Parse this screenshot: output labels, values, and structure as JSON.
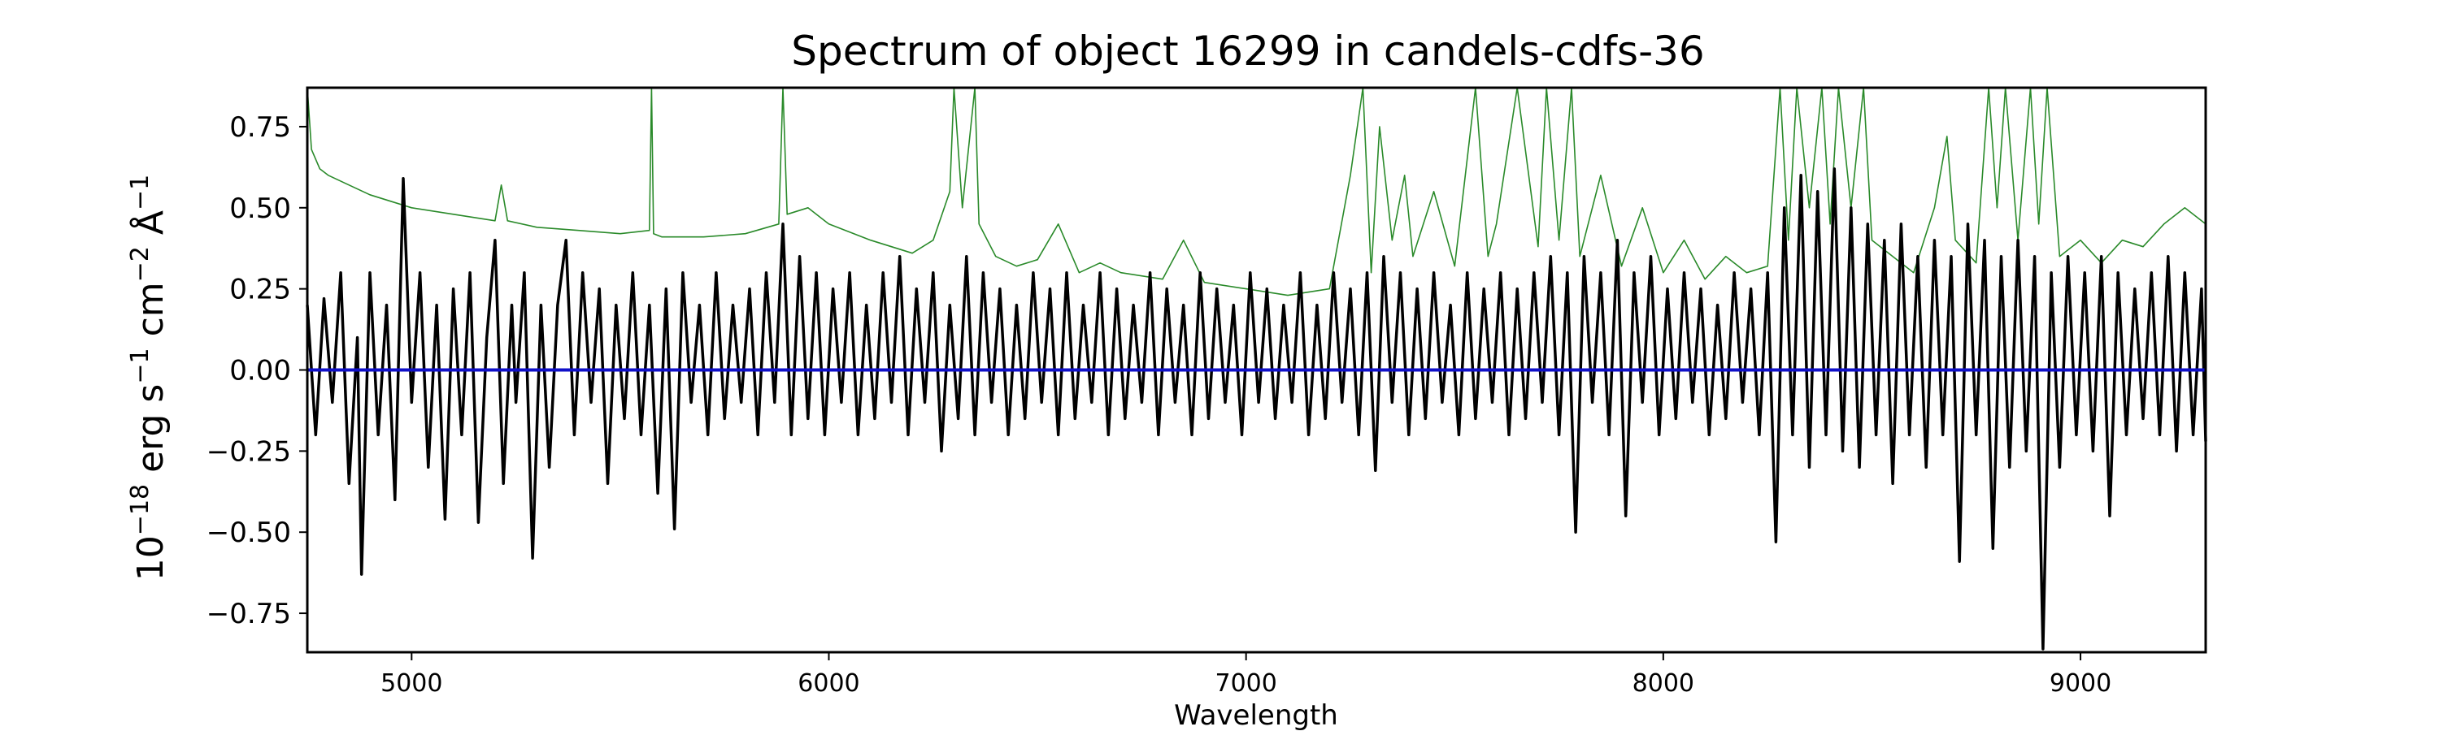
{
  "chart_data": {
    "type": "line",
    "title": "Spectrum of object 16299 in candels-cdfs-36",
    "xlabel": "Wavelength",
    "ylabel_parts": {
      "base": "10",
      "exp1": "−18",
      "erg": " erg s",
      "exp2": "−1",
      "cm": " cm",
      "exp3": "−2",
      "angstrom": " Å",
      "exp4": "−1"
    },
    "xlim": [
      4750,
      9300
    ],
    "ylim": [
      -0.87,
      0.87
    ],
    "xticks": [
      5000,
      6000,
      7000,
      8000,
      9000
    ],
    "xtick_labels": [
      "5000",
      "6000",
      "7000",
      "8000",
      "9000"
    ],
    "yticks": [
      -0.75,
      -0.5,
      -0.25,
      0.0,
      0.25,
      0.5,
      0.75
    ],
    "ytick_labels": [
      "−0.75",
      "−0.50",
      "−0.25",
      "0.00",
      "0.25",
      "0.50",
      "0.75"
    ],
    "grid": false,
    "series": [
      {
        "color": "#2a8a2a",
        "style": "thin",
        "x": [
          4750,
          4760,
          4780,
          4800,
          4850,
          4900,
          4950,
          5000,
          5100,
          5200,
          5215,
          5230,
          5300,
          5400,
          5500,
          5570,
          5575,
          5580,
          5600,
          5700,
          5800,
          5880,
          5890,
          5900,
          5950,
          6000,
          6100,
          6200,
          6250,
          6290,
          6300,
          6320,
          6350,
          6360,
          6400,
          6450,
          6500,
          6550,
          6600,
          6650,
          6700,
          6800,
          6850,
          6900,
          7000,
          7100,
          7200,
          7250,
          7280,
          7300,
          7320,
          7350,
          7380,
          7400,
          7450,
          7500,
          7550,
          7580,
          7600,
          7650,
          7700,
          7720,
          7750,
          7780,
          7800,
          7850,
          7900,
          7950,
          8000,
          8050,
          8100,
          8150,
          8200,
          8250,
          8280,
          8300,
          8320,
          8350,
          8380,
          8400,
          8420,
          8450,
          8480,
          8500,
          8550,
          8600,
          8650,
          8680,
          8700,
          8750,
          8780,
          8800,
          8820,
          8850,
          8880,
          8900,
          8920,
          8950,
          9000,
          9050,
          9100,
          9150,
          9200,
          9250,
          9300
        ],
        "y": [
          0.87,
          0.68,
          0.62,
          0.6,
          0.57,
          0.54,
          0.52,
          0.5,
          0.48,
          0.46,
          0.57,
          0.46,
          0.44,
          0.43,
          0.42,
          0.43,
          0.87,
          0.42,
          0.41,
          0.41,
          0.42,
          0.45,
          0.87,
          0.48,
          0.5,
          0.45,
          0.4,
          0.36,
          0.4,
          0.55,
          0.87,
          0.5,
          0.87,
          0.45,
          0.35,
          0.32,
          0.34,
          0.45,
          0.3,
          0.33,
          0.3,
          0.28,
          0.4,
          0.27,
          0.25,
          0.23,
          0.25,
          0.6,
          0.87,
          0.3,
          0.75,
          0.4,
          0.6,
          0.35,
          0.55,
          0.32,
          0.87,
          0.35,
          0.45,
          0.87,
          0.38,
          0.87,
          0.4,
          0.87,
          0.35,
          0.6,
          0.32,
          0.5,
          0.3,
          0.4,
          0.28,
          0.35,
          0.3,
          0.32,
          0.87,
          0.4,
          0.87,
          0.5,
          0.87,
          0.45,
          0.87,
          0.5,
          0.87,
          0.4,
          0.35,
          0.3,
          0.5,
          0.72,
          0.4,
          0.33,
          0.87,
          0.5,
          0.87,
          0.4,
          0.87,
          0.45,
          0.87,
          0.35,
          0.4,
          0.33,
          0.4,
          0.38,
          0.45,
          0.5,
          0.45
        ]
      },
      {
        "color": "#000000",
        "style": "thick",
        "x": [
          4750,
          4770,
          4790,
          4810,
          4830,
          4850,
          4870,
          4880,
          4900,
          4920,
          4940,
          4960,
          4980,
          5000,
          5020,
          5040,
          5060,
          5080,
          5100,
          5120,
          5140,
          5160,
          5180,
          5200,
          5220,
          5240,
          5250,
          5270,
          5290,
          5310,
          5330,
          5350,
          5370,
          5390,
          5410,
          5430,
          5450,
          5470,
          5490,
          5510,
          5530,
          5550,
          5570,
          5590,
          5610,
          5630,
          5650,
          5670,
          5690,
          5710,
          5730,
          5750,
          5770,
          5790,
          5810,
          5830,
          5850,
          5870,
          5890,
          5910,
          5930,
          5950,
          5970,
          5990,
          6010,
          6030,
          6050,
          6070,
          6090,
          6110,
          6130,
          6150,
          6170,
          6190,
          6210,
          6230,
          6250,
          6270,
          6290,
          6310,
          6330,
          6350,
          6370,
          6390,
          6410,
          6430,
          6450,
          6470,
          6490,
          6510,
          6530,
          6550,
          6570,
          6590,
          6610,
          6630,
          6650,
          6670,
          6690,
          6710,
          6730,
          6750,
          6770,
          6790,
          6810,
          6830,
          6850,
          6870,
          6890,
          6910,
          6930,
          6950,
          6970,
          6990,
          7010,
          7030,
          7050,
          7070,
          7090,
          7110,
          7130,
          7150,
          7170,
          7190,
          7210,
          7230,
          7250,
          7270,
          7290,
          7310,
          7330,
          7350,
          7370,
          7390,
          7410,
          7430,
          7450,
          7470,
          7490,
          7510,
          7530,
          7550,
          7570,
          7590,
          7610,
          7630,
          7650,
          7670,
          7690,
          7710,
          7730,
          7750,
          7770,
          7790,
          7810,
          7830,
          7850,
          7870,
          7890,
          7910,
          7930,
          7950,
          7970,
          7990,
          8010,
          8030,
          8050,
          8070,
          8090,
          8110,
          8130,
          8150,
          8170,
          8190,
          8210,
          8230,
          8250,
          8270,
          8290,
          8310,
          8330,
          8350,
          8370,
          8390,
          8410,
          8430,
          8450,
          8470,
          8490,
          8510,
          8530,
          8550,
          8570,
          8590,
          8610,
          8630,
          8650,
          8670,
          8690,
          8710,
          8730,
          8750,
          8770,
          8790,
          8810,
          8830,
          8850,
          8870,
          8890,
          8910,
          8930,
          8950,
          8970,
          8990,
          9010,
          9030,
          9050,
          9070,
          9090,
          9110,
          9130,
          9150,
          9170,
          9190,
          9210,
          9230,
          9250,
          9270,
          9290,
          9300
        ],
        "y": [
          0.2,
          -0.2,
          0.22,
          -0.1,
          0.3,
          -0.35,
          0.1,
          -0.63,
          0.3,
          -0.2,
          0.2,
          -0.4,
          0.59,
          -0.1,
          0.3,
          -0.3,
          0.2,
          -0.46,
          0.25,
          -0.2,
          0.3,
          -0.47,
          0.1,
          0.4,
          -0.35,
          0.2,
          -0.1,
          0.3,
          -0.58,
          0.2,
          -0.3,
          0.2,
          0.4,
          -0.2,
          0.3,
          -0.1,
          0.25,
          -0.35,
          0.2,
          -0.15,
          0.3,
          -0.2,
          0.2,
          -0.38,
          0.25,
          -0.49,
          0.3,
          -0.1,
          0.2,
          -0.2,
          0.3,
          -0.15,
          0.2,
          -0.1,
          0.25,
          -0.2,
          0.3,
          -0.1,
          0.45,
          -0.2,
          0.35,
          -0.15,
          0.3,
          -0.2,
          0.25,
          -0.1,
          0.3,
          -0.2,
          0.2,
          -0.15,
          0.3,
          -0.1,
          0.35,
          -0.2,
          0.25,
          -0.1,
          0.3,
          -0.25,
          0.2,
          -0.15,
          0.35,
          -0.2,
          0.3,
          -0.1,
          0.25,
          -0.2,
          0.2,
          -0.15,
          0.3,
          -0.1,
          0.25,
          -0.2,
          0.3,
          -0.15,
          0.2,
          -0.1,
          0.3,
          -0.2,
          0.25,
          -0.15,
          0.2,
          -0.1,
          0.3,
          -0.2,
          0.25,
          -0.1,
          0.2,
          -0.2,
          0.3,
          -0.15,
          0.25,
          -0.1,
          0.2,
          -0.2,
          0.3,
          -0.1,
          0.25,
          -0.15,
          0.2,
          -0.1,
          0.3,
          -0.2,
          0.2,
          -0.15,
          0.3,
          -0.1,
          0.25,
          -0.2,
          0.3,
          -0.31,
          0.35,
          -0.1,
          0.3,
          -0.2,
          0.25,
          -0.15,
          0.3,
          -0.1,
          0.2,
          -0.2,
          0.3,
          -0.15,
          0.25,
          -0.1,
          0.3,
          -0.2,
          0.25,
          -0.15,
          0.3,
          -0.1,
          0.35,
          -0.2,
          0.3,
          -0.5,
          0.35,
          -0.1,
          0.3,
          -0.2,
          0.4,
          -0.45,
          0.3,
          -0.1,
          0.35,
          -0.2,
          0.25,
          -0.15,
          0.3,
          -0.1,
          0.25,
          -0.2,
          0.2,
          -0.15,
          0.3,
          -0.1,
          0.25,
          -0.2,
          0.3,
          -0.53,
          0.5,
          -0.2,
          0.6,
          -0.3,
          0.55,
          -0.2,
          0.62,
          -0.25,
          0.5,
          -0.3,
          0.45,
          -0.2,
          0.4,
          -0.35,
          0.45,
          -0.2,
          0.35,
          -0.3,
          0.4,
          -0.2,
          0.35,
          -0.59,
          0.45,
          -0.2,
          0.4,
          -0.55,
          0.35,
          -0.3,
          0.4,
          -0.25,
          0.35,
          -0.86,
          0.3,
          -0.3,
          0.35,
          -0.2,
          0.3,
          -0.25,
          0.35,
          -0.45,
          0.3,
          -0.2,
          0.25,
          -0.15,
          0.3,
          -0.2,
          0.35,
          -0.25,
          0.3,
          -0.2,
          0.25,
          -0.22
        ]
      },
      {
        "color": "#1010c8",
        "style": "medium",
        "x": [
          4750,
          9300
        ],
        "y": [
          0.0,
          0.0
        ]
      }
    ]
  }
}
